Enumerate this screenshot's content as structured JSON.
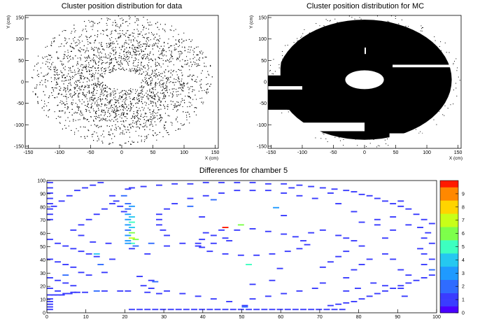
{
  "chart_data": [
    {
      "type": "scatter",
      "title": "Cluster position distribution for data",
      "xlabel": "X (cm)",
      "ylabel": "Y (cm)",
      "xlim": [
        -155,
        155
      ],
      "ylim": [
        -155,
        155
      ],
      "xticks": [
        -150,
        -100,
        -50,
        0,
        50,
        100,
        150
      ],
      "yticks": [
        -150,
        -100,
        -50,
        0,
        50,
        100,
        150
      ],
      "grid": false,
      "density": "sparse",
      "hole": {
        "cx": 0,
        "cy": 5,
        "rx": 31,
        "ry": 22
      },
      "gaps": [
        {
          "x": [
            45,
            155
          ],
          "y": [
            30,
            35
          ]
        },
        {
          "x": [
            -80,
            0
          ],
          "y": [
            -98,
            -92
          ]
        }
      ]
    },
    {
      "type": "scatter",
      "title": "Cluster position distribution for MC",
      "xlabel": "X (cm)",
      "ylabel": "Y (cm)",
      "xlim": [
        -155,
        155
      ],
      "ylim": [
        -155,
        155
      ],
      "xticks": [
        -150,
        -100,
        -50,
        0,
        50,
        100,
        150
      ],
      "yticks": [
        -150,
        -100,
        -50,
        0,
        50,
        100,
        150
      ],
      "grid": false,
      "density": "saturated",
      "hole": {
        "cx": 0,
        "cy": 5,
        "rx": 31,
        "ry": 22
      },
      "gaps": [
        {
          "x": [
            45,
            155
          ],
          "y": [
            34,
            40
          ]
        }
      ]
    },
    {
      "type": "heatmap",
      "title": "Differences for chamber 5",
      "xlim": [
        0,
        100
      ],
      "ylim": [
        0,
        100
      ],
      "xticks": [
        0,
        10,
        20,
        30,
        40,
        50,
        60,
        70,
        80,
        90,
        100
      ],
      "yticks": [
        0,
        10,
        20,
        30,
        40,
        50,
        60,
        70,
        80,
        90,
        100
      ],
      "zlim": [
        0,
        10
      ],
      "zticks": [
        0,
        1,
        2,
        3,
        4,
        5,
        6,
        7,
        8,
        9
      ],
      "grid": false,
      "legend": "right",
      "cells": [
        [
          21,
          2,
          1
        ],
        [
          23,
          2,
          1
        ],
        [
          25,
          2,
          1
        ],
        [
          27,
          2,
          1
        ],
        [
          29,
          2,
          1
        ],
        [
          31,
          2,
          1
        ],
        [
          33,
          2,
          1
        ],
        [
          35,
          2,
          1
        ],
        [
          37,
          2,
          1
        ],
        [
          39,
          2,
          1
        ],
        [
          41,
          2,
          1
        ],
        [
          43,
          2,
          1
        ],
        [
          45,
          2,
          1
        ],
        [
          47,
          2,
          1
        ],
        [
          49,
          2,
          1
        ],
        [
          51,
          2,
          1
        ],
        [
          53,
          2,
          1
        ],
        [
          55,
          2,
          1
        ],
        [
          57,
          2,
          1
        ],
        [
          59,
          2,
          1
        ],
        [
          61,
          2,
          1
        ],
        [
          63,
          2,
          1
        ],
        [
          65,
          2,
          1
        ],
        [
          67,
          2,
          1
        ],
        [
          69,
          2,
          1
        ],
        [
          71,
          2,
          1
        ],
        [
          73,
          2,
          1
        ],
        [
          75,
          2,
          1
        ],
        [
          50,
          4,
          2
        ],
        [
          50,
          5,
          1
        ],
        [
          0,
          13,
          1
        ],
        [
          1,
          13,
          1
        ],
        [
          2,
          13,
          1
        ],
        [
          3,
          13,
          1
        ],
        [
          4,
          14,
          1
        ],
        [
          5,
          14,
          1
        ],
        [
          6,
          15,
          1
        ],
        [
          7,
          15,
          1
        ],
        [
          9,
          15,
          1
        ],
        [
          12,
          16,
          2
        ],
        [
          14,
          16,
          1
        ],
        [
          18,
          16,
          1
        ],
        [
          20,
          16,
          1
        ],
        [
          25,
          15,
          1
        ],
        [
          28,
          14,
          1
        ],
        [
          72,
          5,
          1
        ],
        [
          74,
          6,
          1
        ],
        [
          76,
          7,
          1
        ],
        [
          78,
          8,
          1
        ],
        [
          80,
          10,
          1
        ],
        [
          82,
          12,
          1
        ],
        [
          84,
          14,
          1
        ],
        [
          86,
          16,
          1
        ],
        [
          88,
          18,
          1
        ],
        [
          90,
          20,
          1
        ],
        [
          92,
          22,
          1
        ],
        [
          94,
          24,
          1
        ],
        [
          96,
          26,
          1
        ],
        [
          98,
          28,
          1
        ],
        [
          98,
          32,
          2
        ],
        [
          96,
          36,
          1
        ],
        [
          98,
          40,
          1
        ],
        [
          96,
          44,
          1
        ],
        [
          95,
          48,
          1
        ],
        [
          98,
          52,
          1
        ],
        [
          96,
          56,
          1
        ],
        [
          97,
          60,
          1
        ],
        [
          95,
          64,
          1
        ],
        [
          98,
          67,
          1
        ],
        [
          96,
          70,
          1
        ],
        [
          94,
          74,
          1
        ],
        [
          92,
          78,
          1
        ],
        [
          90,
          80,
          1
        ],
        [
          88,
          82,
          1
        ],
        [
          86,
          84,
          1
        ],
        [
          84,
          86,
          1
        ],
        [
          82,
          88,
          1
        ],
        [
          80,
          89,
          1
        ],
        [
          78,
          91,
          1
        ],
        [
          76,
          92,
          1
        ],
        [
          73,
          93,
          1
        ],
        [
          70,
          94,
          1
        ],
        [
          67,
          95,
          1
        ],
        [
          64,
          96,
          1
        ],
        [
          60,
          97,
          1
        ],
        [
          56,
          97,
          1
        ],
        [
          52,
          98,
          1
        ],
        [
          48,
          98,
          1
        ],
        [
          44,
          98,
          1
        ],
        [
          40,
          98,
          1
        ],
        [
          36,
          97,
          1
        ],
        [
          32,
          97,
          1
        ],
        [
          28,
          96,
          1
        ],
        [
          24,
          95,
          1
        ],
        [
          21,
          94,
          1
        ],
        [
          20,
          93,
          1
        ],
        [
          19,
          88,
          2
        ],
        [
          20,
          82,
          2
        ],
        [
          21,
          80,
          3
        ],
        [
          20,
          78,
          2
        ],
        [
          20,
          74,
          3
        ],
        [
          21,
          72,
          4
        ],
        [
          20,
          70,
          3
        ],
        [
          21,
          68,
          5
        ],
        [
          20,
          66,
          3
        ],
        [
          21,
          64,
          4
        ],
        [
          20,
          62,
          2
        ],
        [
          21,
          60,
          6
        ],
        [
          20,
          58,
          3
        ],
        [
          21,
          56,
          7
        ],
        [
          20,
          54,
          3
        ],
        [
          21,
          52,
          5
        ],
        [
          22,
          55,
          6
        ],
        [
          22,
          50,
          2
        ],
        [
          21,
          48,
          1
        ],
        [
          19,
          76,
          1
        ],
        [
          18,
          80,
          1
        ],
        [
          17,
          84,
          1
        ],
        [
          16,
          88,
          1
        ],
        [
          0,
          55,
          1
        ],
        [
          2,
          52,
          1
        ],
        [
          4,
          50,
          1
        ],
        [
          6,
          48,
          1
        ],
        [
          8,
          46,
          1
        ],
        [
          10,
          44,
          1
        ],
        [
          12,
          42,
          1
        ],
        [
          0,
          40,
          1
        ],
        [
          2,
          38,
          1
        ],
        [
          4,
          36,
          1
        ],
        [
          6,
          34,
          1
        ],
        [
          8,
          30,
          1
        ],
        [
          10,
          28,
          1
        ],
        [
          0,
          26,
          1
        ],
        [
          2,
          24,
          1
        ],
        [
          4,
          22,
          1
        ],
        [
          6,
          20,
          1
        ],
        [
          0,
          18,
          1
        ],
        [
          2,
          16,
          1
        ],
        [
          0,
          10,
          1
        ],
        [
          0,
          8,
          1
        ],
        [
          0,
          6,
          1
        ],
        [
          0,
          4,
          1
        ],
        [
          0,
          2,
          1
        ],
        [
          0,
          70,
          1
        ],
        [
          0,
          74,
          1
        ],
        [
          0,
          78,
          1
        ],
        [
          0,
          82,
          1
        ],
        [
          0,
          86,
          1
        ],
        [
          0,
          90,
          1
        ],
        [
          0,
          94,
          1
        ],
        [
          0,
          98,
          1
        ],
        [
          4,
          28,
          2
        ],
        [
          12,
          44,
          4
        ],
        [
          20,
          52,
          3
        ],
        [
          26,
          52,
          2
        ],
        [
          30,
          50,
          1
        ],
        [
          34,
          52,
          1
        ],
        [
          38,
          50,
          1
        ],
        [
          42,
          52,
          1
        ],
        [
          46,
          54,
          1
        ],
        [
          40,
          60,
          1
        ],
        [
          44,
          62,
          1
        ],
        [
          48,
          62,
          1
        ],
        [
          52,
          63,
          1
        ],
        [
          56,
          61,
          1
        ],
        [
          60,
          59,
          1
        ],
        [
          63,
          57,
          1
        ],
        [
          65,
          54,
          1
        ],
        [
          66,
          51,
          1
        ],
        [
          64,
          48,
          1
        ],
        [
          61,
          46,
          1
        ],
        [
          57,
          44,
          1
        ],
        [
          53,
          43,
          1
        ],
        [
          49,
          43,
          1
        ],
        [
          45,
          44,
          1
        ],
        [
          41,
          46,
          1
        ],
        [
          39,
          49,
          1
        ],
        [
          38,
          52,
          1
        ],
        [
          39,
          55,
          1
        ],
        [
          42,
          58,
          1
        ],
        [
          45,
          64,
          10
        ],
        [
          49,
          66,
          6
        ],
        [
          51,
          36,
          5
        ],
        [
          67,
          60,
          1
        ],
        [
          70,
          62,
          1
        ],
        [
          74,
          58,
          1
        ],
        [
          76,
          56,
          1
        ],
        [
          78,
          54,
          1
        ],
        [
          80,
          50,
          1
        ],
        [
          76,
          46,
          1
        ],
        [
          74,
          42,
          1
        ],
        [
          72,
          38,
          1
        ],
        [
          70,
          34,
          1
        ],
        [
          83,
          22,
          1
        ],
        [
          86,
          20,
          1
        ],
        [
          79,
          18,
          1
        ],
        [
          76,
          16,
          1
        ],
        [
          90,
          18,
          1
        ],
        [
          91,
          12,
          1
        ],
        [
          88,
          62,
          1
        ],
        [
          84,
          66,
          1
        ],
        [
          84,
          70,
          1
        ],
        [
          88,
          72,
          1
        ],
        [
          86,
          56,
          1
        ],
        [
          92,
          66,
          1
        ],
        [
          80,
          68,
          1
        ],
        [
          78,
          76,
          1
        ],
        [
          74,
          82,
          1
        ],
        [
          68,
          86,
          1
        ],
        [
          64,
          88,
          1
        ],
        [
          60,
          90,
          1
        ],
        [
          56,
          92,
          1
        ],
        [
          52,
          92,
          1
        ],
        [
          48,
          92,
          1
        ],
        [
          44,
          90,
          1
        ],
        [
          40,
          88,
          1
        ],
        [
          36,
          86,
          1
        ],
        [
          32,
          82,
          1
        ],
        [
          30,
          78,
          1
        ],
        [
          28,
          74,
          1
        ],
        [
          28,
          70,
          1
        ],
        [
          28,
          66,
          1
        ],
        [
          29,
          62,
          1
        ],
        [
          30,
          58,
          1
        ],
        [
          26,
          24,
          1
        ],
        [
          24,
          20,
          1
        ],
        [
          26,
          18,
          1
        ],
        [
          30,
          16,
          1
        ],
        [
          34,
          14,
          1
        ],
        [
          38,
          12,
          1
        ],
        [
          42,
          10,
          1
        ],
        [
          46,
          8,
          1
        ],
        [
          52,
          10,
          1
        ],
        [
          56,
          12,
          1
        ],
        [
          60,
          14,
          1
        ],
        [
          64,
          16,
          1
        ],
        [
          68,
          18,
          1
        ],
        [
          70,
          22,
          1
        ],
        [
          76,
          26,
          1
        ],
        [
          78,
          32,
          1
        ],
        [
          80,
          36,
          1
        ],
        [
          82,
          40,
          1
        ],
        [
          92,
          28,
          1
        ],
        [
          90,
          32,
          1
        ],
        [
          88,
          40,
          1
        ],
        [
          86,
          44,
          1
        ],
        [
          52,
          21,
          1
        ],
        [
          57,
          24,
          1
        ],
        [
          59,
          33,
          1
        ],
        [
          45,
          56,
          1
        ],
        [
          36,
          80,
          2
        ],
        [
          42,
          85,
          2
        ],
        [
          39,
          72,
          1
        ],
        [
          58,
          79,
          3
        ],
        [
          60,
          73,
          1
        ],
        [
          27,
          23,
          2
        ],
        [
          23,
          27,
          1
        ],
        [
          14,
          30,
          1
        ],
        [
          13,
          36,
          2
        ],
        [
          16,
          40,
          1
        ],
        [
          25,
          44,
          1
        ],
        [
          11,
          53,
          1
        ],
        [
          15,
          52,
          1
        ],
        [
          8,
          58,
          1
        ],
        [
          6,
          62,
          1
        ],
        [
          8,
          66,
          1
        ],
        [
          10,
          70,
          1
        ],
        [
          12,
          74,
          1
        ],
        [
          14,
          78,
          1
        ],
        [
          16,
          82,
          1
        ],
        [
          1,
          80,
          1
        ],
        [
          3,
          84,
          1
        ],
        [
          5,
          88,
          1
        ],
        [
          7,
          92,
          1
        ],
        [
          9,
          94,
          1
        ],
        [
          11,
          96,
          1
        ],
        [
          13,
          98,
          1
        ],
        [
          62,
          94,
          1
        ],
        [
          72,
          90,
          1
        ],
        [
          90,
          84,
          1
        ]
      ]
    }
  ]
}
